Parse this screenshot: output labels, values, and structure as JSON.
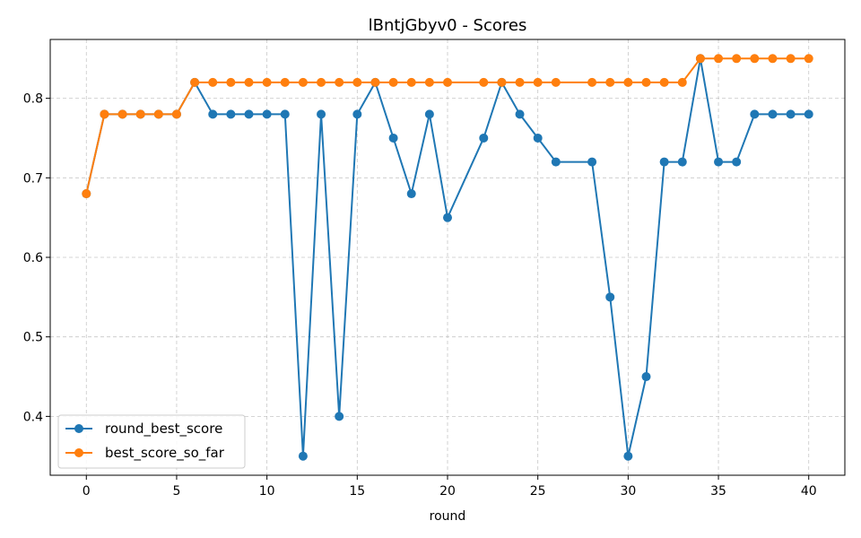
{
  "chart_data": {
    "type": "line",
    "title": "lBntjGbyv0 - Scores",
    "xlabel": "round",
    "ylabel": "",
    "xlim": [
      -2,
      42
    ],
    "ylim": [
      0.326,
      0.874
    ],
    "xticks": [
      0,
      5,
      10,
      15,
      20,
      25,
      30,
      35,
      40
    ],
    "yticks": [
      0.4,
      0.5,
      0.6,
      0.7,
      0.8
    ],
    "grid": true,
    "legend": "lower-left",
    "series": [
      {
        "name": "round_best_score",
        "color": "#1f77b4",
        "x": [
          0,
          1,
          2,
          3,
          4,
          5,
          6,
          7,
          8,
          9,
          10,
          11,
          12,
          13,
          14,
          15,
          16,
          17,
          18,
          19,
          20,
          22,
          23,
          24,
          25,
          26,
          28,
          29,
          30,
          31,
          32,
          33,
          34,
          35,
          36,
          37,
          38,
          39,
          40
        ],
        "y": [
          0.68,
          0.78,
          0.78,
          0.78,
          0.78,
          0.78,
          0.82,
          0.78,
          0.78,
          0.78,
          0.78,
          0.78,
          0.35,
          0.78,
          0.4,
          0.78,
          0.82,
          0.75,
          0.68,
          0.78,
          0.65,
          0.75,
          0.82,
          0.78,
          0.75,
          0.72,
          0.72,
          0.55,
          0.35,
          0.45,
          0.72,
          0.72,
          0.85,
          0.72,
          0.72,
          0.78,
          0.78,
          0.78,
          0.78
        ]
      },
      {
        "name": "best_score_so_far",
        "color": "#ff7f0e",
        "x": [
          0,
          1,
          2,
          3,
          4,
          5,
          6,
          7,
          8,
          9,
          10,
          11,
          12,
          13,
          14,
          15,
          16,
          17,
          18,
          19,
          20,
          22,
          23,
          24,
          25,
          26,
          28,
          29,
          30,
          31,
          32,
          33,
          34,
          35,
          36,
          37,
          38,
          39,
          40
        ],
        "y": [
          0.68,
          0.78,
          0.78,
          0.78,
          0.78,
          0.78,
          0.82,
          0.82,
          0.82,
          0.82,
          0.82,
          0.82,
          0.82,
          0.82,
          0.82,
          0.82,
          0.82,
          0.82,
          0.82,
          0.82,
          0.82,
          0.82,
          0.82,
          0.82,
          0.82,
          0.82,
          0.82,
          0.82,
          0.82,
          0.82,
          0.82,
          0.82,
          0.85,
          0.85,
          0.85,
          0.85,
          0.85,
          0.85,
          0.85
        ]
      }
    ]
  }
}
